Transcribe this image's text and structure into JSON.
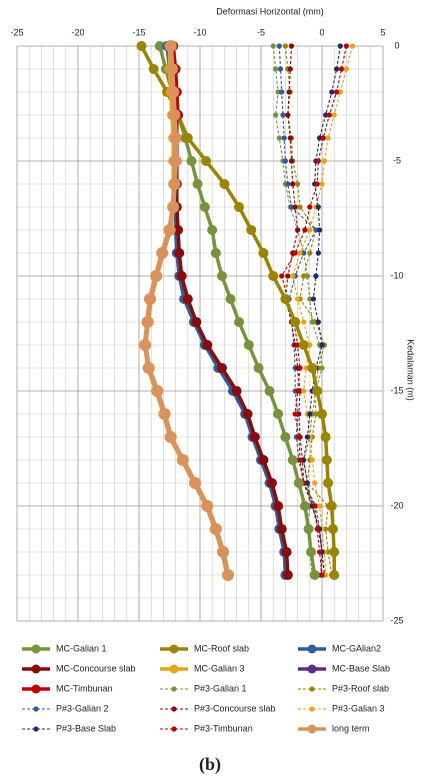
{
  "chart_data": {
    "type": "line",
    "title": "Deformasi Horizontal (mm)",
    "y_label": "Kedalaman (m)",
    "caption": "(b)",
    "y": [
      0,
      -1,
      -2,
      -3,
      -4,
      -5,
      -6,
      -7,
      -8,
      -9,
      -10,
      -11,
      -12,
      -13,
      -14,
      -15,
      -16,
      -17,
      -18,
      -19,
      -20,
      -21,
      -22,
      -23
    ],
    "xlim": [
      -25,
      5
    ],
    "xticks": [
      -25,
      -20,
      -15,
      -10,
      -5,
      0,
      5
    ],
    "ylim": [
      0,
      -25
    ],
    "yticks": [
      0,
      -5,
      -10,
      -15,
      -20,
      -25
    ],
    "grid": true,
    "series": [
      {
        "name": "MC-Galian 1",
        "color": "#77933c",
        "style": "solid",
        "values": [
          -13.3,
          -12.8,
          -12.3,
          -11.8,
          -11.2,
          -10.7,
          -10.2,
          -9.6,
          -9.0,
          -8.7,
          -8.2,
          -7.5,
          -6.8,
          -6.0,
          -5.2,
          -4.3,
          -3.6,
          -3.0,
          -2.4,
          -1.9,
          -1.4,
          -1.1,
          -0.9,
          -0.6
        ]
      },
      {
        "name": "MC-Roof slab",
        "color": "#9a8400",
        "style": "solid",
        "values": [
          -14.8,
          -13.8,
          -12.7,
          -11.8,
          -11.0,
          -9.5,
          -8.0,
          -6.8,
          -5.8,
          -4.8,
          -4.0,
          -3.0,
          -2.2,
          -1.5,
          -0.8,
          -0.4,
          0,
          0.3,
          0.4,
          0.5,
          0.8,
          0.9,
          1.0,
          1.0
        ]
      },
      {
        "name": "MC-GAlian2",
        "color": "#2e5d9a",
        "style": "solid",
        "values": [
          -12.7,
          -12.5,
          -12.3,
          -12.0,
          -12.0,
          -12.0,
          -12.0,
          -12.0,
          -12.0,
          -11.9,
          -11.7,
          -11.3,
          -10.5,
          -9.6,
          -8.5,
          -7.3,
          -6.3,
          -5.7,
          -5.0,
          -4.3,
          -3.8,
          -3.5,
          -3.1,
          -3.0
        ]
      },
      {
        "name": "MC-Concourse slab",
        "color": "#8b0a0a",
        "style": "solid",
        "values": [
          -12.5,
          -12.3,
          -12.1,
          -11.9,
          -11.9,
          -11.9,
          -11.9,
          -11.9,
          -11.8,
          -11.7,
          -11.5,
          -11.0,
          -10.3,
          -9.4,
          -8.2,
          -7.0,
          -6.1,
          -5.5,
          -4.8,
          -4.1,
          -3.6,
          -3.3,
          -2.9,
          -2.8
        ]
      },
      {
        "name": "MC-Galian 3",
        "color": "#e8a317",
        "style": "solid",
        "values": [
          -12.5,
          -12.5,
          -12.4,
          -12.3,
          -12.2,
          -12.2,
          -12.2,
          -12.2,
          -12.4,
          -13.0,
          -13.5,
          -14.0,
          -14.2,
          -14.5,
          -14.3,
          -13.6,
          -13.0,
          -12.5,
          -11.5,
          -10.5,
          -9.5,
          -8.8,
          -8.2,
          -7.8
        ]
      },
      {
        "name": "MC-Base Slab",
        "color": "#5b2c8a",
        "style": "solid",
        "values": [
          -12.3,
          -12.1,
          -12.0,
          -11.9,
          null,
          null,
          null,
          null,
          null,
          null,
          null,
          null,
          null,
          null,
          null,
          null,
          null,
          null,
          null,
          null,
          null,
          null,
          null,
          null
        ]
      },
      {
        "name": "MC-Timbunan",
        "color": "#c00000",
        "style": "solid",
        "values": [
          -12.2,
          -12.0,
          -11.9,
          -11.8,
          null,
          null,
          null,
          null,
          null,
          null,
          null,
          null,
          null,
          null,
          null,
          null,
          null,
          null,
          null,
          null,
          null,
          null,
          null,
          null
        ]
      },
      {
        "name": "P#3-Galian 1",
        "color": "#77933c",
        "style": "dashed",
        "values": [
          -4.0,
          -3.8,
          -3.6,
          -3.8,
          -3.5,
          -3.2,
          -3.0,
          -2.6,
          -2.0,
          -1.5,
          -1.2,
          -1.0,
          -0.8,
          -0.2,
          0,
          -0.5,
          -0.8,
          -1.0,
          -1.5,
          -1.2,
          -1.0,
          -1.2,
          -1.0,
          -0.8
        ]
      },
      {
        "name": "P#3-Roof slab",
        "color": "#9a8400",
        "style": "dashed",
        "values": [
          -3.0,
          -2.8,
          -2.6,
          -2.8,
          -2.5,
          -2.4,
          -2.0,
          -1.8,
          -0.5,
          -1.0,
          -1.5,
          -1.8,
          -0.5,
          0.2,
          -0.3,
          -0.6,
          -0.5,
          -0.8,
          -1.0,
          -1.2,
          0.5,
          0.3,
          0.5,
          0.8
        ]
      },
      {
        "name": "P#3-Galian 2",
        "color": "#2e5d9a",
        "style": "dashed",
        "values": [
          -3.5,
          -3.4,
          -3.3,
          -3.2,
          -3.1,
          -3.0,
          -2.8,
          -2.5,
          -0.5,
          -1.5,
          -2.2,
          -2.7,
          -2.5,
          -2.3,
          -2.2,
          -2.2,
          -2.0,
          -2.1,
          -1.9,
          -1.5,
          -0.5,
          -0.2,
          0,
          0.2
        ]
      },
      {
        "name": "P#3-Concourse slab",
        "color": "#8b0a0a",
        "style": "dashed",
        "values": [
          -2.5,
          -2.6,
          -2.7,
          -2.8,
          -2.6,
          -2.5,
          -2.4,
          -2.2,
          -2.0,
          -2.4,
          -2.8,
          -3.0,
          -2.5,
          -2.2,
          -2.0,
          -1.8,
          -1.9,
          -1.8,
          -1.6,
          -1.5,
          -0.8,
          -0.3,
          0,
          0.2
        ]
      },
      {
        "name": "P#3-Galian 3",
        "color": "#e8a317",
        "style": "dashed",
        "values": [
          2.5,
          2.0,
          1.5,
          1.0,
          0.5,
          0.2,
          0,
          -0.5,
          -1.0,
          -1.8,
          -2.4,
          -2.0,
          -1.5,
          -1.0,
          -1.3,
          -1.5,
          -1.2,
          -1.0,
          -0.8,
          -0.6,
          -0.2,
          0,
          0.2,
          0.3
        ]
      },
      {
        "name": "P#3-Base Slab",
        "color": "#1f2a6b",
        "style": "dashed",
        "values": [
          1.5,
          1.2,
          0.8,
          0.3,
          -0.2,
          -0.5,
          -0.6,
          -0.3,
          -0.2,
          -0.3,
          -0.5,
          -0.7,
          -0.3,
          0,
          -0.5,
          -0.8,
          -1.0,
          -1.2,
          -1.5,
          -1.2,
          -0.8,
          -0.2,
          0,
          -0.1
        ]
      },
      {
        "name": "P#3-Timbunan",
        "color": "#c00000",
        "style": "dashed",
        "values": [
          2.0,
          1.6,
          1.2,
          0.6,
          0.1,
          -0.3,
          -0.4,
          -1.0,
          -1.4,
          -2.2,
          -3.3,
          -2.8,
          -2.3,
          -2.0,
          -1.8,
          -2.0,
          -2.2,
          -1.9,
          -1.8,
          -1.5,
          -0.6,
          -0.4,
          -0.2,
          0
        ]
      },
      {
        "name": "long term",
        "color": "#d9935a",
        "style": "solid",
        "values": [
          -12.4,
          -12.3,
          -12.2,
          -12.1,
          -12.0,
          -12.0,
          -12.1,
          -12.2,
          -12.5,
          -13.1,
          -13.6,
          -14.1,
          -14.3,
          -14.5,
          -14.2,
          -13.5,
          -12.9,
          -12.4,
          -11.4,
          -10.4,
          -9.4,
          -8.7,
          -8.1,
          -7.7
        ]
      }
    ]
  }
}
